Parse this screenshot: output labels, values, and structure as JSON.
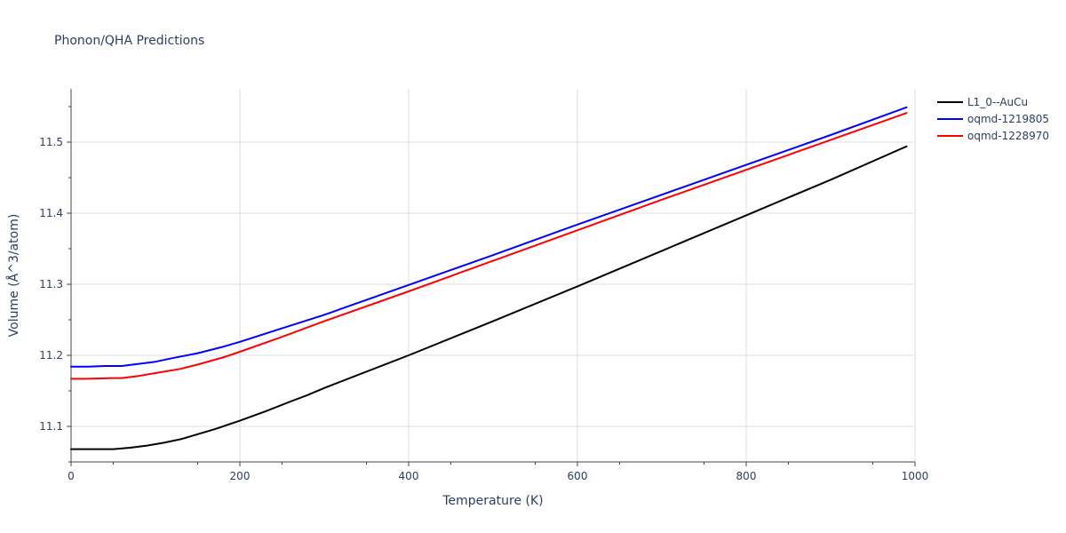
{
  "chart_data": {
    "type": "line",
    "title": "Phonon/QHA Predictions",
    "xlabel": "Temperature (K)",
    "ylabel": "Volume (Å^3/atom)",
    "xlim": [
      0,
      1000
    ],
    "ylim": [
      11.05,
      11.575
    ],
    "x_ticks": [
      0,
      200,
      400,
      600,
      800,
      1000
    ],
    "y_ticks": [
      11.1,
      11.2,
      11.3,
      11.4,
      11.5
    ],
    "x_tick_labels": [
      "0",
      "200",
      "400",
      "600",
      "800",
      "1000"
    ],
    "y_tick_labels": [
      "11.1",
      "11.2",
      "11.3",
      "11.4",
      "11.5"
    ],
    "grid": true,
    "legend_position": "top-right",
    "series": [
      {
        "name": "L1_0--AuCu",
        "color": "#000000",
        "x": [
          0,
          20,
          50,
          70,
          90,
          110,
          130,
          150,
          170,
          200,
          230,
          260,
          280,
          300,
          400,
          500,
          600,
          700,
          800,
          900,
          990
        ],
        "y": [
          11.068,
          11.068,
          11.068,
          11.07,
          11.073,
          11.077,
          11.082,
          11.089,
          11.096,
          11.108,
          11.121,
          11.135,
          11.144,
          11.154,
          11.2,
          11.248,
          11.297,
          11.347,
          11.397,
          11.447,
          11.494
        ]
      },
      {
        "name": "oqmd-1219805",
        "color": "#0000ff",
        "x": [
          0,
          20,
          40,
          60,
          80,
          100,
          120,
          150,
          180,
          200,
          250,
          300,
          400,
          500,
          600,
          700,
          800,
          900,
          990
        ],
        "y": [
          11.184,
          11.184,
          11.185,
          11.185,
          11.188,
          11.191,
          11.196,
          11.203,
          11.212,
          11.219,
          11.238,
          11.257,
          11.299,
          11.341,
          11.384,
          11.426,
          11.468,
          11.51,
          11.549
        ]
      },
      {
        "name": "oqmd-1228970",
        "color": "#ff0000",
        "x": [
          0,
          20,
          50,
          60,
          80,
          100,
          130,
          150,
          180,
          200,
          250,
          300,
          400,
          500,
          600,
          700,
          800,
          900,
          990
        ],
        "y": [
          11.167,
          11.167,
          11.168,
          11.168,
          11.171,
          11.175,
          11.181,
          11.187,
          11.197,
          11.205,
          11.226,
          11.248,
          11.29,
          11.333,
          11.376,
          11.419,
          11.461,
          11.503,
          11.541
        ]
      }
    ]
  }
}
